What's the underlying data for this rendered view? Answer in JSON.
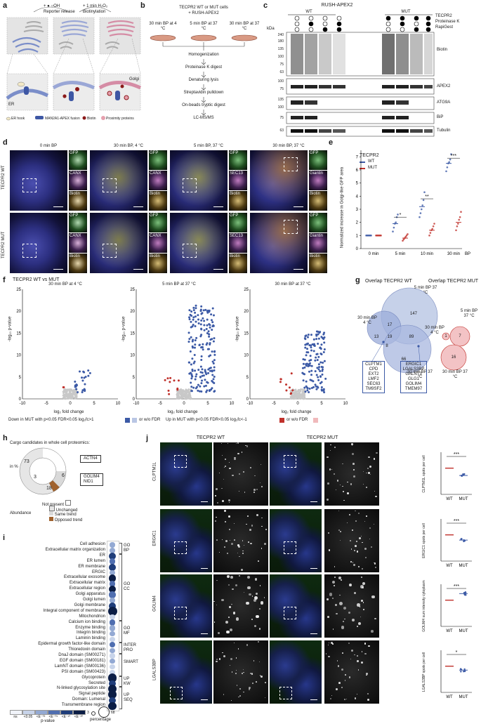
{
  "panels": {
    "a": "a",
    "b": "b",
    "c": "c",
    "d": "d",
    "e": "e",
    "f": "f",
    "g": "g",
    "h": "h",
    "i": "i",
    "j": "j"
  },
  "a": {
    "top_left": "+ ● ○OH",
    "top_right": "+ 1 min H₂O₂",
    "reporter": "Reporter release",
    "biotinylation": "Biotinylation",
    "er": "ER",
    "golgi": "Golgi",
    "legend": [
      "ER hook",
      "MAN2A1-APEX fusion",
      "Biotin",
      "Proximity proteins"
    ]
  },
  "b": {
    "title1": "TECPR2 WT or MUT cells",
    "title2": "+ RUSH-APEX2",
    "conds": [
      "30 min BP at 4 °C",
      "5 min BP at 37 °C",
      "30 min BP at 37 °C"
    ],
    "steps": [
      "Homogenization",
      "Proteinase K digest",
      "Denaturing lysis",
      "Streptavidin pulldown",
      "On-beads tryptic digest",
      "LC-MS/MS"
    ]
  },
  "c": {
    "title": "RUSH-APEX2",
    "wt": "WT",
    "mut": "MUT",
    "row_labels": [
      "TECPR2",
      "Proteinase K",
      "RapiGest"
    ],
    "kda": "kDa",
    "blots": [
      {
        "name": "Biotin",
        "markers": [
          "240",
          "180",
          "135",
          "100",
          "75",
          "63"
        ]
      },
      {
        "name": "APEX2",
        "markers": [
          "100",
          "75"
        ]
      },
      {
        "name": "ATG9A",
        "markers": [
          "135",
          "100"
        ]
      },
      {
        "name": "BiP",
        "markers": [
          "75"
        ]
      },
      {
        "name": "Tubulin",
        "markers": [
          "63"
        ]
      }
    ]
  },
  "d": {
    "cols": [
      "0 min BP",
      "30 min BP, 4 °C",
      "5 min BP, 37 °C",
      "30 min BP, 37 °C"
    ],
    "rows": [
      "TECPR2 WT",
      "TECPR2 MUT"
    ],
    "channels": [
      [
        "GFP",
        "CANX",
        "Biotin"
      ],
      [
        "GFP",
        "CANX",
        "Biotin"
      ],
      [
        "GFP",
        "SEC13",
        "Biotin"
      ],
      [
        "GFP",
        "Giantin",
        "Biotin"
      ]
    ]
  },
  "e": {
    "legend_title": "TECPR2",
    "legend": [
      "WT",
      "MUT"
    ],
    "ylabel": "Normalized increase in Golgi-like GFP area",
    "xticks": [
      "0 min",
      "5 min",
      "10 min",
      "30 min"
    ],
    "xunit": "BP",
    "sig": [
      "*",
      "**",
      "***"
    ],
    "yticks": [
      "0",
      "1",
      "2",
      "3",
      "4",
      "5",
      "6",
      "7"
    ]
  },
  "chart_data": [
    {
      "type": "scatter",
      "panel": "e",
      "categories": [
        "0 min",
        "5 min",
        "10 min",
        "30 min"
      ],
      "series": [
        {
          "name": "WT",
          "color": "#3c5aa6",
          "means": [
            1.0,
            1.9,
            3.2,
            6.5
          ],
          "points": [
            [
              1,
              1,
              1,
              1,
              1,
              1
            ],
            [
              1.3,
              1.6,
              1.9,
              2.0,
              2.4,
              2.6
            ],
            [
              2.4,
              2.7,
              3.0,
              3.3,
              3.7,
              4.3
            ],
            [
              5.9,
              6.2,
              6.5,
              6.6,
              6.8,
              7.2
            ]
          ]
        },
        {
          "name": "MUT",
          "color": "#c0312b",
          "means": [
            1.0,
            0.8,
            1.4,
            2.0
          ],
          "points": [
            [
              1,
              1,
              1,
              1,
              1,
              1
            ],
            [
              0.6,
              0.7,
              0.8,
              0.9,
              1.0,
              1.1
            ],
            [
              1.0,
              1.2,
              1.4,
              1.5,
              1.7,
              1.9
            ],
            [
              1.4,
              1.7,
              1.9,
              2.2,
              2.4,
              2.8
            ]
          ]
        }
      ],
      "ylim": [
        0,
        7.5
      ]
    }
  ],
  "f": {
    "title": "TECPR2 WT vs MUT",
    "subplots": [
      "30 min BP at 4 °C",
      "5 min BP at 37 °C",
      "30 min BP at 37 °C"
    ],
    "xlabel": "log₂ fold change",
    "ylabel": "-log₁₀ p-value",
    "xticks": [
      "-10",
      "-5",
      "0",
      "5",
      "10"
    ],
    "yticks": [
      "0",
      "5",
      "10",
      "15",
      "20",
      "25"
    ],
    "legend1": "Down in MUT with p<0.05 FDR<0.05 log₂fc>1",
    "legend2": "or w/o FDR",
    "legend3": "Up in MUT with p<0.05 FDR<0.05 log₂fc<-1",
    "legend4": "or w/o FDR"
  },
  "g": {
    "title_wt": "Overlap TECPR2 WT",
    "title_mut": "Overlap TECPR2 MUT",
    "lab_4c": "30 min BP 4 °C",
    "lab_5m": "5 min BP 37 °C",
    "lab_30m": "30 min BP 37 °C",
    "wt_nums": [
      "147",
      "17",
      "13",
      "19",
      "8",
      "89",
      "66"
    ],
    "mut_nums": [
      "7",
      "1",
      "16"
    ],
    "box1": [
      "CLPTM1",
      "CPD",
      "EXT2",
      "LMF2",
      "SEC63",
      "TM9SF2"
    ],
    "box2": [
      "ERGIC1",
      "LGALS3BP",
      "GALNT3",
      "GLG1",
      "GOLIM4",
      "TMEM97"
    ]
  },
  "h": {
    "title": "Cargo candidates in whole cell proteomics:",
    "unit": "in %",
    "values": [
      "73",
      "3",
      "6",
      "18"
    ],
    "box1": [
      "ACTN4"
    ],
    "box2": [
      "GOLIM4",
      "NID1"
    ],
    "legend": [
      "Not present",
      "Unchanged",
      "Same trend",
      "Opposed trend"
    ],
    "abundance": "Abundance"
  },
  "i": {
    "terms": [
      "Cell adhesion",
      "Extracellular matrix organization",
      "ER",
      "ER lumen",
      "ER membrane",
      "ERGIC",
      "Extracellular exosome",
      "Extracellular matrix",
      "Extracellular region",
      "Golgi apparatus",
      "Golgi lumen",
      "Golgi membrane",
      "Integral component of membrane",
      "Mitochondrion",
      "Calcium ion binding",
      "Enzyme binding",
      "Integrin binding",
      "Laminin binding",
      "Epidermal growth factor-like domain",
      "Thioredoxin domain",
      "DnaJ domain (SM00271)",
      "EGF domain (SM00181)",
      "LamNT domain (SM00136)",
      "PSI domain (SM00423)",
      "Glycoprotein",
      "Secreted",
      "N-linked glycosylation site",
      "Signal peptide",
      "Domain: Lumenal",
      "Transmembrane region"
    ],
    "groups": [
      [
        "GO",
        "BP"
      ],
      [
        "GO",
        "CC"
      ],
      [
        "GO",
        "MF"
      ],
      [
        "INTER",
        "PRO"
      ],
      [
        "SMART"
      ],
      [
        "UP",
        "KW"
      ],
      [
        "UP",
        "SEQ"
      ]
    ],
    "scale": [
      "ns",
      "<0.05",
      "<E⁻⁰²",
      "<E⁻⁰⁵",
      "<E⁻¹⁰",
      "<E⁻²⁰"
    ],
    "scale_label": "p-value",
    "size_min": "3",
    "size_max": "68",
    "size_label": "percentage",
    "sizes": [
      0.35,
      0.4,
      0.7,
      0.5,
      0.65,
      0.35,
      0.75,
      0.55,
      0.7,
      0.6,
      0.4,
      0.7,
      1.0,
      0.35,
      0.5,
      0.45,
      0.4,
      0.35,
      0.45,
      0.35,
      0.35,
      0.35,
      0.35,
      0.35,
      0.95,
      0.65,
      0.9,
      0.85,
      0.6,
      0.8
    ],
    "levels": [
      2,
      2,
      4,
      3,
      4,
      2,
      5,
      3,
      5,
      3,
      2,
      4,
      5,
      1,
      3,
      2,
      2,
      1,
      3,
      2,
      1,
      2,
      1,
      1,
      5,
      4,
      5,
      5,
      4,
      5
    ]
  },
  "j": {
    "col_wt": "TECPR2 WT",
    "col_mut": "TECPR2 MUT",
    "rows": [
      "CLPTM1L",
      "ERGIC1",
      "GOLIM4",
      "LGALS3BP"
    ],
    "ylabels": [
      "CLPTM1L spots per cell",
      "ERGIC1 spots per cell",
      "GOLIM4 sum intensity cytoplasm",
      "LGALS3BP spots per cell"
    ],
    "sig": [
      "***",
      "***",
      "***",
      "*"
    ],
    "xticks": [
      "WT",
      "MUT"
    ],
    "mut_values": [
      0.72,
      0.8,
      1.25,
      0.85
    ]
  }
}
